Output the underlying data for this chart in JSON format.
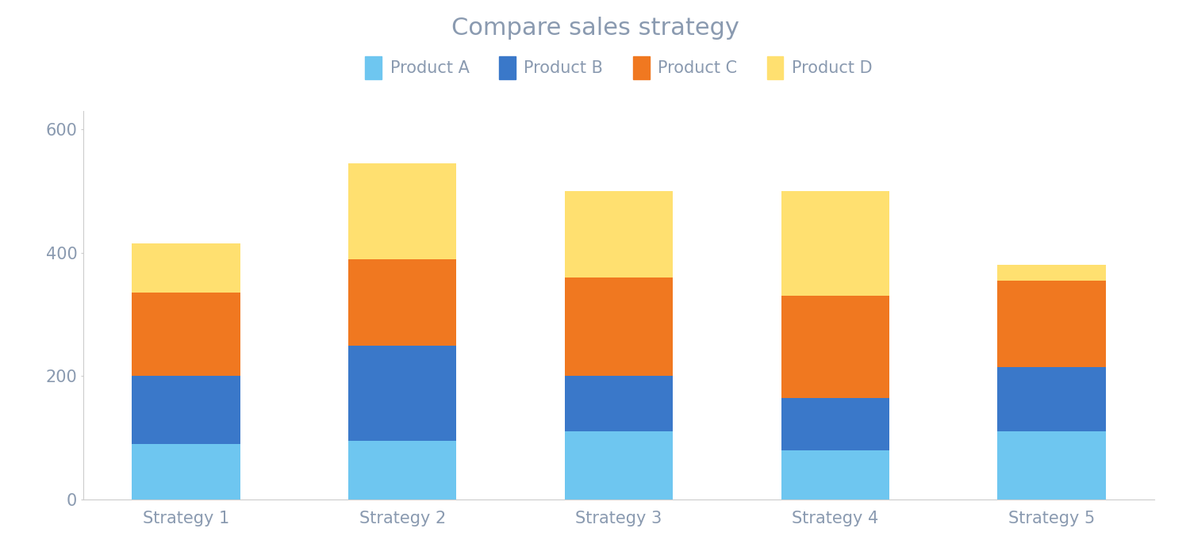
{
  "title": "Compare sales strategy",
  "title_fontsize": 22,
  "title_color": "#8a9ab0",
  "categories": [
    "Strategy 1",
    "Strategy 2",
    "Strategy 3",
    "Strategy 4",
    "Strategy 5"
  ],
  "products": [
    "Product A",
    "Product B",
    "Product C",
    "Product D"
  ],
  "values": {
    "Product A": [
      90,
      95,
      110,
      80,
      110
    ],
    "Product B": [
      110,
      155,
      90,
      85,
      105
    ],
    "Product C": [
      135,
      140,
      160,
      165,
      140
    ],
    "Product D": [
      80,
      155,
      140,
      170,
      25
    ]
  },
  "colors": {
    "Product A": "#6ec6f0",
    "Product B": "#3a78c9",
    "Product C": "#f07820",
    "Product D": "#ffe070"
  },
  "ylim": [
    0,
    630
  ],
  "yticks": [
    0,
    200,
    400,
    600
  ],
  "bar_width": 0.5,
  "legend_fontsize": 15,
  "tick_fontsize": 15,
  "tick_color": "#8a9ab0",
  "background_color": "#ffffff",
  "spine_color": "#cccccc"
}
